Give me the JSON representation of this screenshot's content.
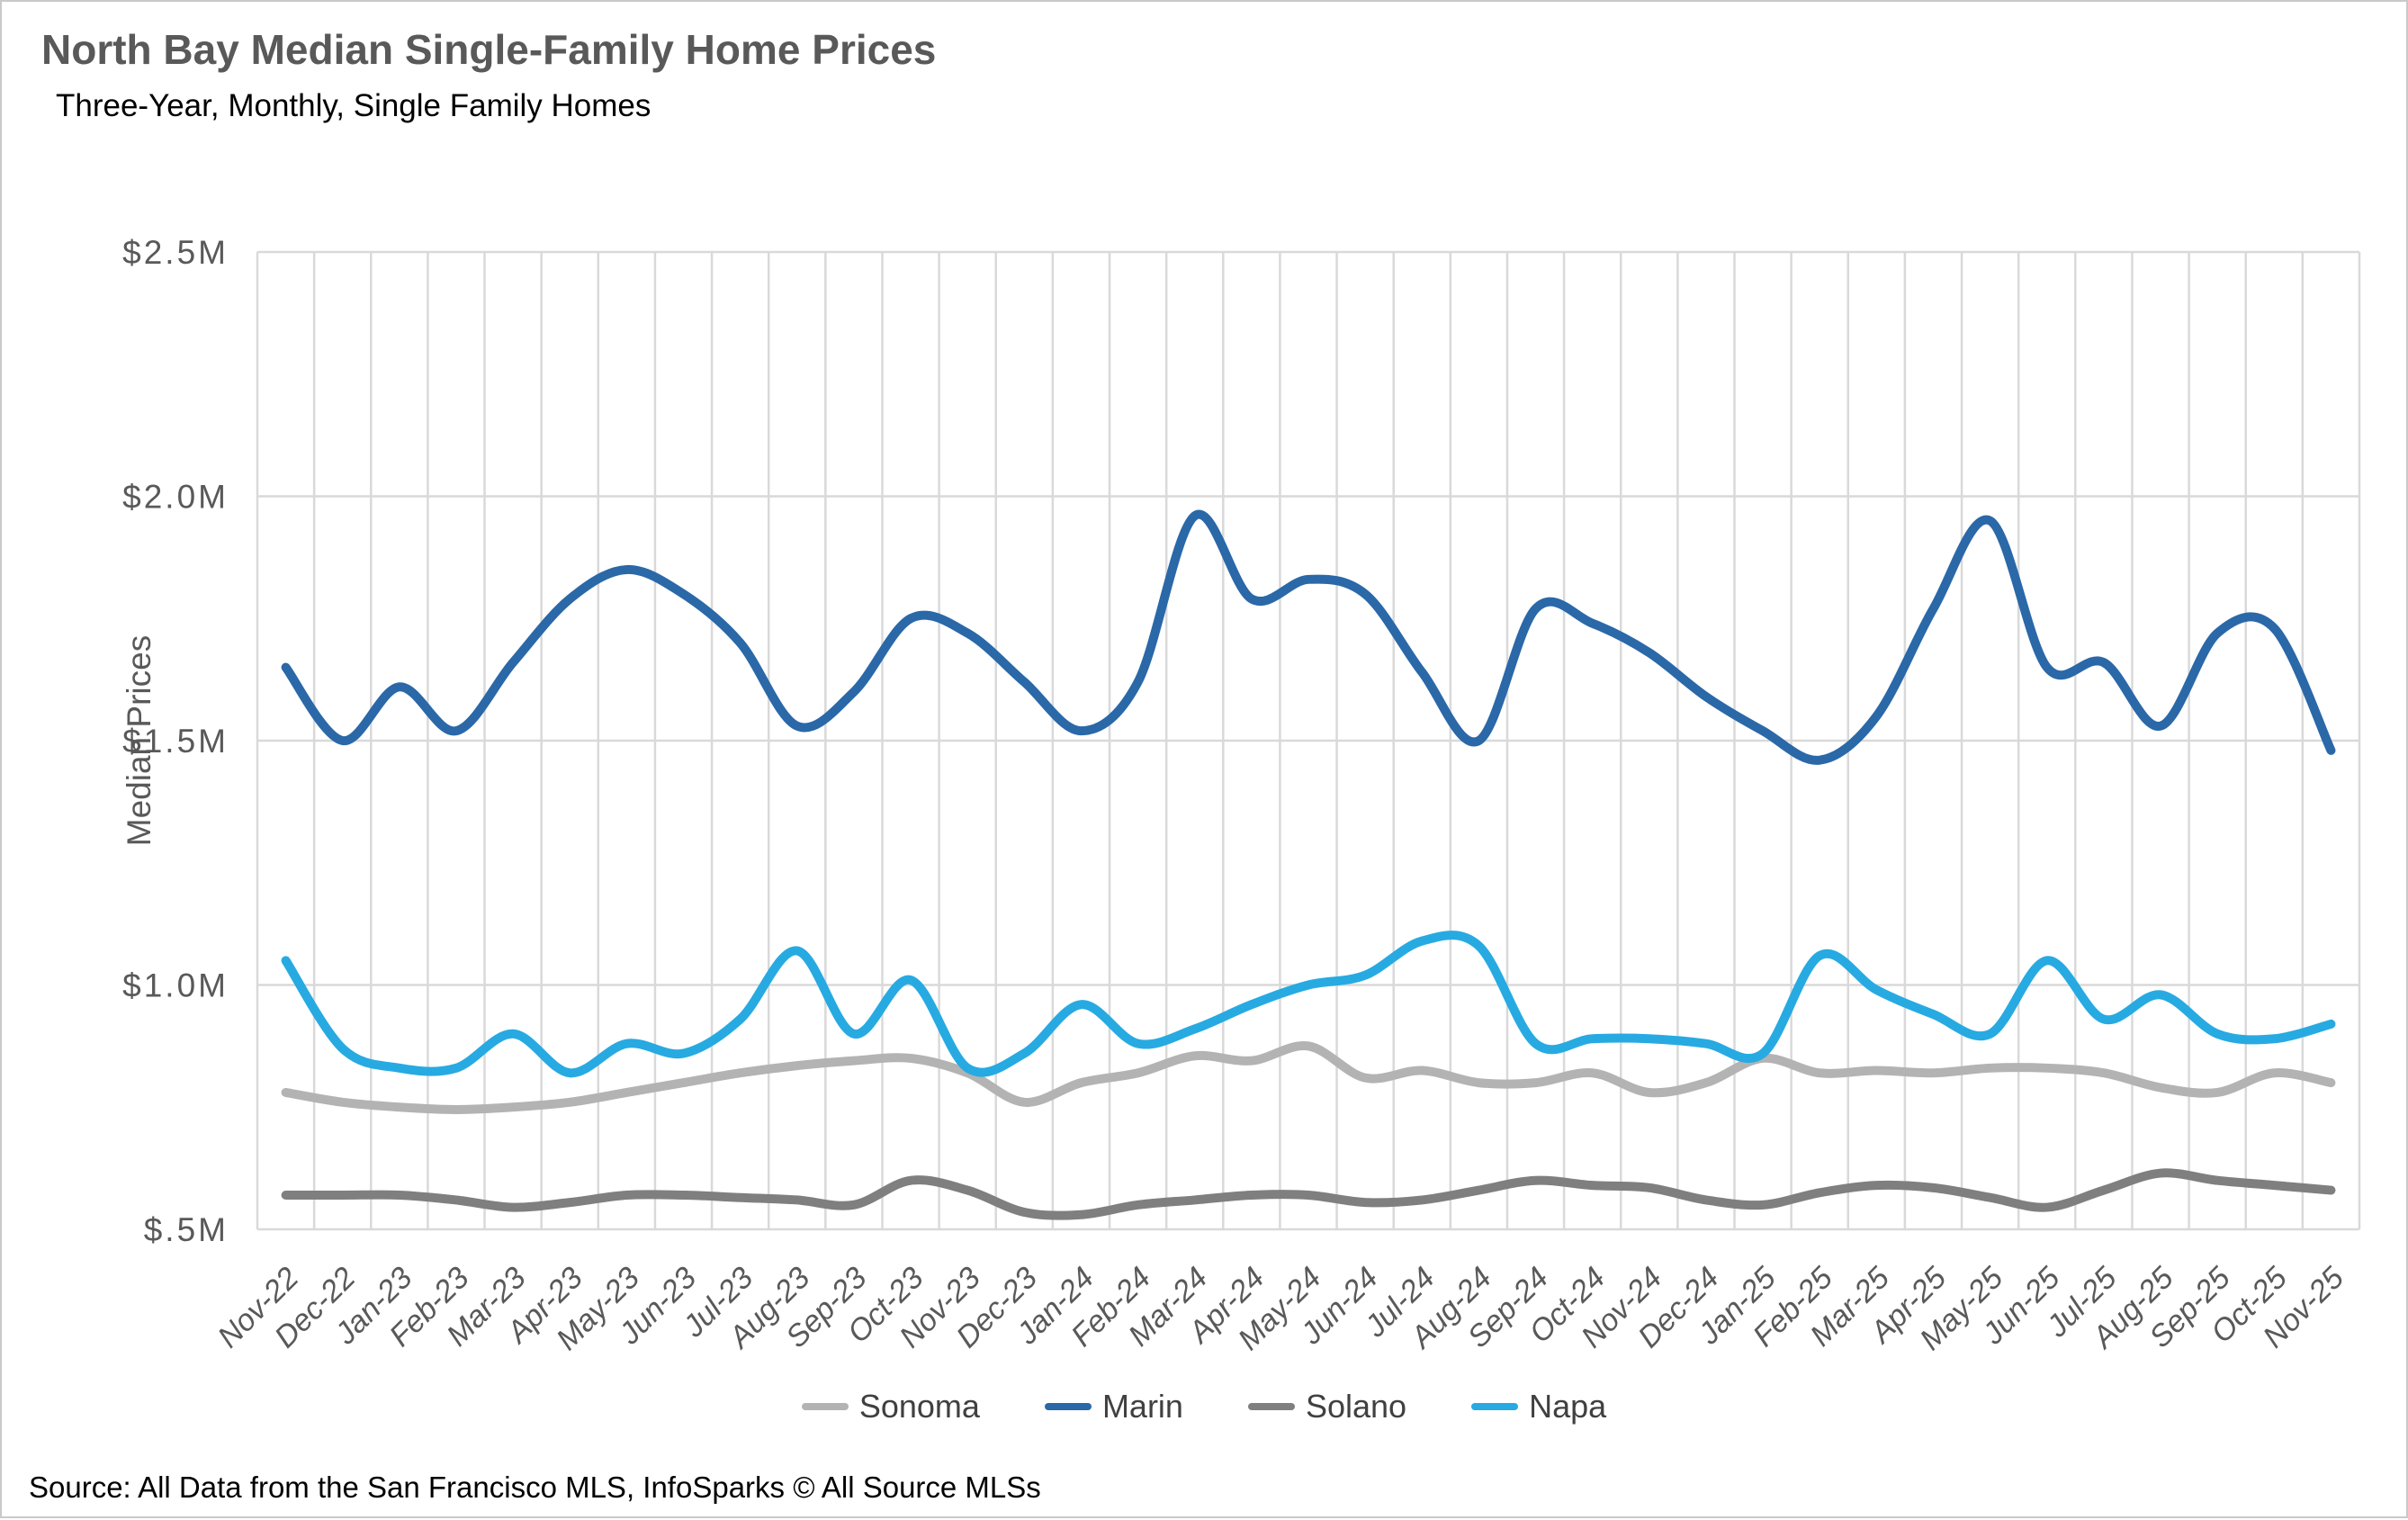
{
  "title": "North Bay Median Single-Family Home Prices",
  "subtitle": "Three-Year, Monthly, Single Family Homes",
  "source": "Source: All Data from the San Francisco MLS, InfoSparks © All Source MLSs",
  "colors": {
    "title_text": "#595959",
    "axis_text": "#595959",
    "legend_text": "#404040",
    "gridline": "#d9d9d9",
    "sonoma": "#b3b3b3",
    "marin": "#2a68a8",
    "solano": "#7f7f7f",
    "napa": "#27aae1"
  },
  "chart_data": {
    "type": "line",
    "title": "North Bay Median Single-Family Home Prices",
    "subtitle": "Three-Year, Monthly, Single Family Homes",
    "xlabel": "",
    "ylabel": "Median Prices",
    "y_unit": "$M",
    "ylim": [
      0.5,
      2.5
    ],
    "y_ticks": [
      {
        "value": 2.5,
        "label": "$2.5M"
      },
      {
        "value": 2.0,
        "label": "$2.0M"
      },
      {
        "value": 1.5,
        "label": "$1.5M"
      },
      {
        "value": 1.0,
        "label": "$1.0M"
      },
      {
        "value": 0.5,
        "label": "$.5M"
      }
    ],
    "grid": true,
    "legend_position": "bottom",
    "smooth_lines": true,
    "categories": [
      "Nov-22",
      "Dec-22",
      "Jan-23",
      "Feb-23",
      "Mar-23",
      "Apr-23",
      "May-23",
      "Jun-23",
      "Jul-23",
      "Aug-23",
      "Sep-23",
      "Oct-23",
      "Nov-23",
      "Dec-23",
      "Jan-24",
      "Feb-24",
      "Mar-24",
      "Apr-24",
      "May-24",
      "Jun-24",
      "Jul-24",
      "Aug-24",
      "Sep-24",
      "Oct-24",
      "Nov-24",
      "Dec-24",
      "Jan-25",
      "Feb-25",
      "Mar-25",
      "Apr-25",
      "May-25",
      "Jun-25",
      "Jul-25",
      "Aug-25",
      "Sep-25",
      "Oct-25",
      "Nov-25"
    ],
    "series": [
      {
        "name": "Sonoma",
        "color_key": "sonoma",
        "values": [
          0.78,
          0.76,
          0.75,
          0.745,
          0.75,
          0.76,
          0.78,
          0.8,
          0.82,
          0.835,
          0.845,
          0.85,
          0.82,
          0.76,
          0.8,
          0.82,
          0.855,
          0.845,
          0.875,
          0.81,
          0.825,
          0.8,
          0.8,
          0.82,
          0.78,
          0.8,
          0.85,
          0.82,
          0.825,
          0.82,
          0.83,
          0.83,
          0.82,
          0.79,
          0.78,
          0.82,
          0.8
        ]
      },
      {
        "name": "Marin",
        "color_key": "marin",
        "values": [
          1.65,
          1.5,
          1.61,
          1.52,
          1.66,
          1.79,
          1.85,
          1.8,
          1.7,
          1.53,
          1.6,
          1.75,
          1.72,
          1.62,
          1.52,
          1.62,
          1.96,
          1.79,
          1.83,
          1.8,
          1.64,
          1.5,
          1.77,
          1.74,
          1.68,
          1.59,
          1.52,
          1.46,
          1.55,
          1.77,
          1.95,
          1.65,
          1.66,
          1.53,
          1.72,
          1.73,
          1.48
        ]
      },
      {
        "name": "Solano",
        "color_key": "solano",
        "values": [
          0.57,
          0.57,
          0.57,
          0.56,
          0.545,
          0.555,
          0.57,
          0.57,
          0.565,
          0.56,
          0.55,
          0.6,
          0.58,
          0.535,
          0.53,
          0.55,
          0.56,
          0.57,
          0.57,
          0.555,
          0.56,
          0.58,
          0.6,
          0.59,
          0.585,
          0.56,
          0.55,
          0.575,
          0.59,
          0.585,
          0.565,
          0.545,
          0.58,
          0.615,
          0.6,
          0.59,
          0.58
        ]
      },
      {
        "name": "Napa",
        "color_key": "napa",
        "values": [
          1.05,
          0.87,
          0.83,
          0.83,
          0.9,
          0.82,
          0.88,
          0.86,
          0.93,
          1.07,
          0.9,
          1.01,
          0.83,
          0.86,
          0.96,
          0.88,
          0.91,
          0.96,
          1.0,
          1.02,
          1.09,
          1.08,
          0.88,
          0.89,
          0.89,
          0.88,
          0.86,
          1.06,
          0.99,
          0.94,
          0.9,
          1.05,
          0.93,
          0.98,
          0.9,
          0.89,
          0.92
        ]
      }
    ]
  }
}
